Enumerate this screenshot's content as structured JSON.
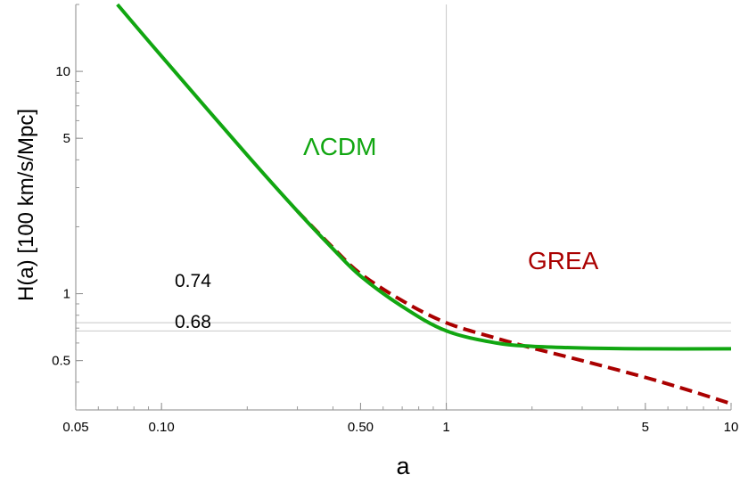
{
  "chart_data": {
    "type": "line",
    "title": "",
    "xlabel": "a",
    "ylabel": "H(a)  [100 km/s/Mpc]",
    "xscale": "log",
    "yscale": "log",
    "xlim": [
      0.05,
      10
    ],
    "ylim": [
      0.3,
      20
    ],
    "x_ticks": [
      {
        "value": 0.05,
        "label": "0.05"
      },
      {
        "value": 0.1,
        "label": "0.10"
      },
      {
        "value": 0.5,
        "label": "0.50"
      },
      {
        "value": 1,
        "label": "1"
      },
      {
        "value": 5,
        "label": "5"
      },
      {
        "value": 10,
        "label": "10"
      }
    ],
    "y_ticks": [
      {
        "value": 0.5,
        "label": "0.5"
      },
      {
        "value": 1,
        "label": "1"
      },
      {
        "value": 5,
        "label": "5"
      },
      {
        "value": 10,
        "label": "10"
      }
    ],
    "reference_lines": {
      "horizontal": [
        {
          "value": 0.74,
          "label": "0.74"
        },
        {
          "value": 0.68,
          "label": "0.68"
        }
      ],
      "vertical": [
        {
          "value": 1
        }
      ]
    },
    "series": [
      {
        "name": "ΛCDM",
        "color": "#11A611",
        "style": "solid",
        "x": [
          0.07,
          0.1,
          0.2,
          0.3,
          0.4,
          0.5,
          0.7,
          1,
          1.5,
          2,
          3,
          5,
          10
        ],
        "y": [
          20,
          11.7,
          4.2,
          2.35,
          1.59,
          1.2,
          0.876,
          0.68,
          0.6,
          0.58,
          0.57,
          0.565,
          0.565
        ]
      },
      {
        "name": "GREA",
        "color": "#AA0000",
        "style": "dashed",
        "x": [
          0.3,
          0.4,
          0.5,
          0.7,
          1,
          1.5,
          2,
          3,
          5,
          7,
          10
        ],
        "y": [
          2.35,
          1.61,
          1.23,
          0.93,
          0.74,
          0.63,
          0.57,
          0.5,
          0.42,
          0.37,
          0.32
        ]
      }
    ]
  }
}
